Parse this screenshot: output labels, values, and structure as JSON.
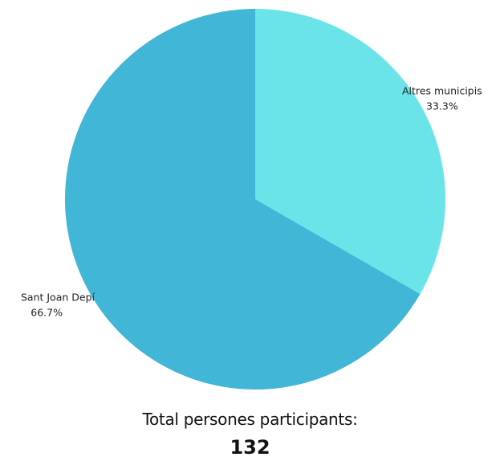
{
  "chart_data": {
    "type": "pie",
    "slices": [
      {
        "name": "Altres municipis",
        "value": 33.3,
        "percent_label": "33.3%",
        "color": "#6BE4E9"
      },
      {
        "name": "Sant Joan Depí",
        "value": 66.7,
        "percent_label": "66.7%",
        "color": "#42B6D6"
      }
    ],
    "start_angle_deg": 0,
    "direction": "clockwise",
    "label_placement": "outside"
  },
  "footer": {
    "label": "Total persones participants:",
    "value": "132"
  }
}
